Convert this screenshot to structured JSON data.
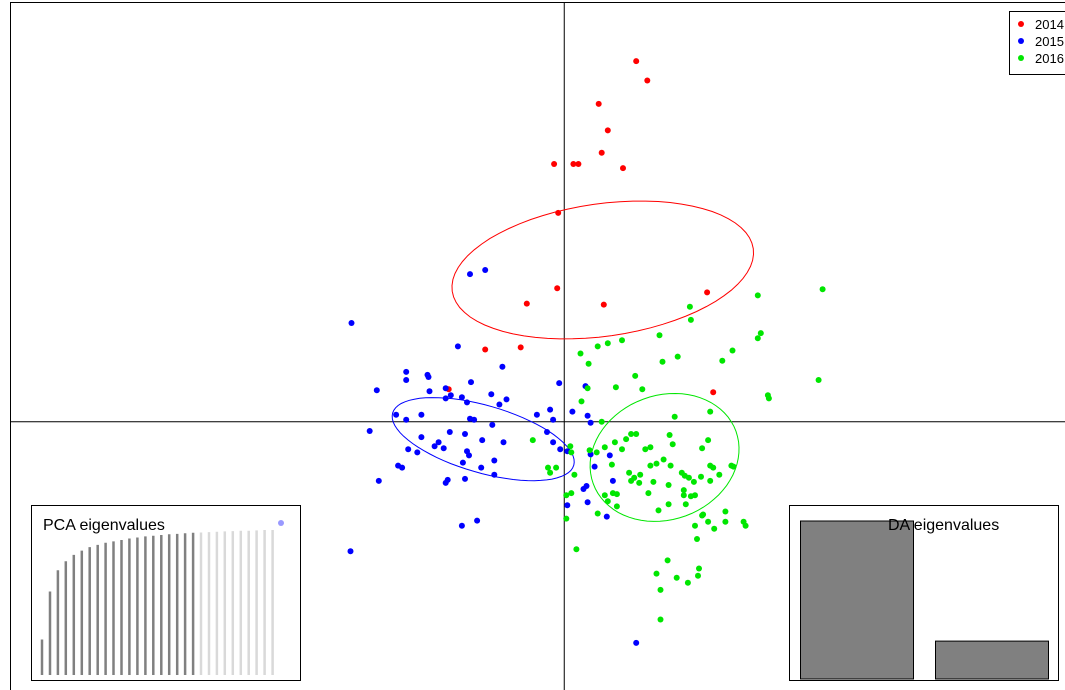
{
  "chart_data": [
    {
      "type": "scatter",
      "title": "",
      "xlabel": "",
      "ylabel": "",
      "xlim": [
        -5.47,
        5.09
      ],
      "ylim": [
        -2.75,
        4.12
      ],
      "grid": false,
      "legend_position": "top-right",
      "axes_lines_through_origin": true,
      "series": [
        {
          "name": "2014",
          "color": "#ff0000",
          "ellipse": {
            "cx": 0.38,
            "cy": 1.49,
            "rx": 0.65,
            "ry": 1.5,
            "angle_deg": -82
          },
          "points": [
            [
              0.71,
              3.54
            ],
            [
              0.82,
              3.35
            ],
            [
              0.34,
              3.12
            ],
            [
              0.43,
              2.86
            ],
            [
              0.37,
              2.64
            ],
            [
              -0.1,
              2.53
            ],
            [
              0.09,
              2.53
            ],
            [
              0.14,
              2.53
            ],
            [
              0.58,
              2.49
            ],
            [
              -0.06,
              2.05
            ],
            [
              -0.37,
              1.16
            ],
            [
              -0.07,
              1.31
            ],
            [
              0.39,
              1.15
            ],
            [
              1.41,
              1.27
            ],
            [
              -0.78,
              0.71
            ],
            [
              -0.43,
              0.73
            ],
            [
              -1.14,
              0.32
            ],
            [
              1.47,
              0.29
            ]
          ]
        },
        {
          "name": "2015",
          "color": "#0000ff",
          "ellipse": {
            "cx": -0.8,
            "cy": -0.17,
            "rx": 0.93,
            "ry": 0.33,
            "angle_deg": -16
          },
          "points": [
            [
              -0.93,
              1.45
            ],
            [
              -0.78,
              1.49
            ],
            [
              -2.1,
              0.97
            ],
            [
              -1.05,
              0.74
            ],
            [
              -1.56,
              0.49
            ],
            [
              -1.35,
              0.46
            ],
            [
              -1.56,
              0.41
            ],
            [
              -1.34,
              0.44
            ],
            [
              -1.17,
              0.33
            ],
            [
              -0.61,
              0.54
            ],
            [
              -0.92,
              0.39
            ],
            [
              -1.85,
              0.31
            ],
            [
              -1.33,
              0.3
            ],
            [
              -1.17,
              0.23
            ],
            [
              -1.12,
              0.26
            ],
            [
              -1.01,
              0.24
            ],
            [
              -0.96,
              0.19
            ],
            [
              -0.72,
              0.27
            ],
            [
              -0.57,
              0.22
            ],
            [
              -0.64,
              0.17
            ],
            [
              -0.14,
              0.12
            ],
            [
              -0.27,
              0.07
            ],
            [
              -0.11,
              0.02
            ],
            [
              0.21,
              0.35
            ],
            [
              0.23,
              0.06
            ],
            [
              0.26,
              -0.01
            ],
            [
              -1.56,
              0.02
            ],
            [
              -1.66,
              0.07
            ],
            [
              -1.41,
              0.07
            ],
            [
              -0.93,
              0.03
            ],
            [
              -0.89,
              0.02
            ],
            [
              -0.71,
              -0.03
            ],
            [
              -1.41,
              -0.15
            ],
            [
              -1.13,
              -0.1
            ],
            [
              -0.98,
              -0.12
            ],
            [
              -0.81,
              -0.18
            ],
            [
              -1.24,
              -0.2
            ],
            [
              -1.28,
              -0.24
            ],
            [
              -1.19,
              -0.26
            ],
            [
              -0.6,
              -0.2
            ],
            [
              -0.96,
              -0.29
            ],
            [
              -0.94,
              -0.33
            ],
            [
              -1.45,
              -0.3
            ],
            [
              -1.0,
              -0.4
            ],
            [
              -1.54,
              -0.27
            ],
            [
              -1.64,
              -0.43
            ],
            [
              -1.92,
              -0.09
            ],
            [
              -1.6,
              -0.45
            ],
            [
              -0.82,
              -0.45
            ],
            [
              -0.69,
              -0.38
            ],
            [
              -0.69,
              -0.52
            ],
            [
              -1.15,
              -0.57
            ],
            [
              -1.17,
              -0.6
            ],
            [
              -1.83,
              -0.58
            ],
            [
              -0.98,
              -0.56
            ],
            [
              -0.86,
              -0.97
            ],
            [
              -1.01,
              -1.02
            ],
            [
              -2.11,
              -1.27
            ],
            [
              0.19,
              -0.66
            ],
            [
              0.26,
              -0.32
            ],
            [
              0.3,
              -0.44
            ],
            [
              0.45,
              -0.33
            ],
            [
              0.48,
              -0.58
            ],
            [
              0.22,
              -0.63
            ],
            [
              0.23,
              -0.79
            ],
            [
              0.42,
              -0.93
            ],
            [
              0.03,
              -0.82
            ],
            [
              0.71,
              -2.17
            ],
            [
              0.03,
              -0.29
            ],
            [
              -0.11,
              -0.2
            ],
            [
              -0.17,
              -0.1
            ],
            [
              0.08,
              0.1
            ],
            [
              -0.05,
              0.38
            ],
            [
              -0.04,
              -0.27
            ]
          ]
        },
        {
          "name": "2016",
          "color": "#00e600",
          "ellipse": {
            "cx": 0.99,
            "cy": -0.35,
            "rx": 0.75,
            "ry": 0.61,
            "angle_deg": 20
          },
          "points": [
            [
              2.55,
              1.3
            ],
            [
              1.91,
              1.24
            ],
            [
              1.24,
              1.13
            ],
            [
              1.25,
              1.0
            ],
            [
              0.57,
              0.8
            ],
            [
              0.43,
              0.77
            ],
            [
              0.33,
              0.74
            ],
            [
              0.16,
              0.67
            ],
            [
              0.24,
              0.57
            ],
            [
              1.56,
              0.6
            ],
            [
              0.94,
              0.85
            ],
            [
              1.91,
              0.82
            ],
            [
              1.94,
              0.87
            ],
            [
              1.66,
              0.7
            ],
            [
              1.12,
              0.64
            ],
            [
              0.97,
              0.59
            ],
            [
              2.51,
              0.41
            ],
            [
              2.01,
              0.26
            ],
            [
              2.02,
              0.23
            ],
            [
              0.7,
              0.45
            ],
            [
              0.77,
              0.32
            ],
            [
              0.51,
              0.34
            ],
            [
              0.23,
              0.33
            ],
            [
              0.17,
              0.2
            ],
            [
              1.44,
              0.1
            ],
            [
              1.09,
              0.05
            ],
            [
              0.37,
              0.0
            ],
            [
              0.5,
              -0.2
            ],
            [
              0.61,
              -0.17
            ],
            [
              0.4,
              -0.25
            ],
            [
              0.66,
              -0.12
            ],
            [
              0.71,
              -0.12
            ],
            [
              1.04,
              -0.13
            ],
            [
              1.07,
              -0.22
            ],
            [
              1.42,
              -0.18
            ],
            [
              1.36,
              -0.26
            ],
            [
              0.85,
              -0.25
            ],
            [
              0.8,
              -0.27
            ],
            [
              0.57,
              -0.27
            ],
            [
              0.32,
              -0.3
            ],
            [
              0.25,
              -0.28
            ],
            [
              0.47,
              -0.42
            ],
            [
              1.47,
              -0.45
            ],
            [
              1.67,
              -0.44
            ],
            [
              1.53,
              -0.52
            ],
            [
              1.44,
              -0.43
            ],
            [
              1.05,
              -0.43
            ],
            [
              0.98,
              -0.37
            ],
            [
              0.91,
              -0.41
            ],
            [
              0.64,
              -0.5
            ],
            [
              0.75,
              -0.52
            ],
            [
              0.69,
              -0.55
            ],
            [
              0.66,
              -0.58
            ],
            [
              1.16,
              -0.5
            ],
            [
              1.23,
              -0.55
            ],
            [
              1.35,
              -0.54
            ],
            [
              1.03,
              -0.62
            ],
            [
              1.18,
              -0.67
            ],
            [
              1.28,
              -0.59
            ],
            [
              1.19,
              -0.53
            ],
            [
              0.85,
              -0.43
            ],
            [
              0.74,
              -0.6
            ],
            [
              0.48,
              -0.7
            ],
            [
              1.18,
              -0.72
            ],
            [
              1.29,
              -0.72
            ],
            [
              0.83,
              -0.7
            ],
            [
              0.52,
              -0.83
            ],
            [
              0.4,
              -0.72
            ],
            [
              1.03,
              -0.81
            ],
            [
              1.2,
              -0.81
            ],
            [
              1.36,
              -0.92
            ],
            [
              1.59,
              -0.88
            ],
            [
              0.06,
              -0.24
            ],
            [
              0.07,
              -0.3
            ],
            [
              0.1,
              -0.52
            ],
            [
              -0.14,
              -0.5
            ],
            [
              -0.16,
              -0.45
            ],
            [
              0.52,
              -0.71
            ],
            [
              0.43,
              -0.78
            ],
            [
              0.33,
              -0.9
            ],
            [
              0.07,
              -0.7
            ],
            [
              1.25,
              -0.73
            ],
            [
              0.93,
              -0.87
            ],
            [
              0.88,
              -0.59
            ],
            [
              1.44,
              -0.58
            ],
            [
              1.42,
              -0.98
            ],
            [
              1.48,
              -1.05
            ],
            [
              1.29,
              -1.02
            ],
            [
              1.37,
              -0.91
            ],
            [
              1.77,
              -0.98
            ],
            [
              1.59,
              -0.98
            ],
            [
              1.65,
              -0.43
            ],
            [
              1.02,
              -1.36
            ],
            [
              1.33,
              -1.44
            ],
            [
              0.91,
              -1.49
            ],
            [
              1.32,
              -1.51
            ],
            [
              1.22,
              -1.58
            ],
            [
              0.95,
              -1.65
            ],
            [
              1.11,
              -1.53
            ],
            [
              0.12,
              -1.25
            ],
            [
              0.02,
              -0.95
            ],
            [
              0.95,
              -1.94
            ],
            [
              1.31,
              -1.15
            ],
            [
              1.79,
              -1.02
            ],
            [
              -0.08,
              -0.45
            ],
            [
              0.02,
              -0.72
            ],
            [
              -0.31,
              -0.18
            ]
          ]
        }
      ]
    },
    {
      "type": "bar",
      "title": "PCA eigenvalues",
      "values": [
        1.0,
        2.35,
        2.95,
        3.2,
        3.38,
        3.5,
        3.6,
        3.66,
        3.72,
        3.76,
        3.8,
        3.84,
        3.87,
        3.9,
        3.92,
        3.94,
        3.96,
        3.97,
        3.99,
        4.0,
        4.01,
        4.02,
        4.03,
        4.04,
        4.05,
        4.06,
        4.06,
        4.07,
        4.08,
        4.08
      ],
      "retained_count": 20,
      "colors": {
        "retained": "#808080",
        "discarded": "#d9d9d9",
        "marker": "#9999ff"
      }
    },
    {
      "type": "bar",
      "title": "DA eigenvalues",
      "values": [
        100,
        24
      ],
      "colors": {
        "bar": "#808080"
      }
    }
  ]
}
